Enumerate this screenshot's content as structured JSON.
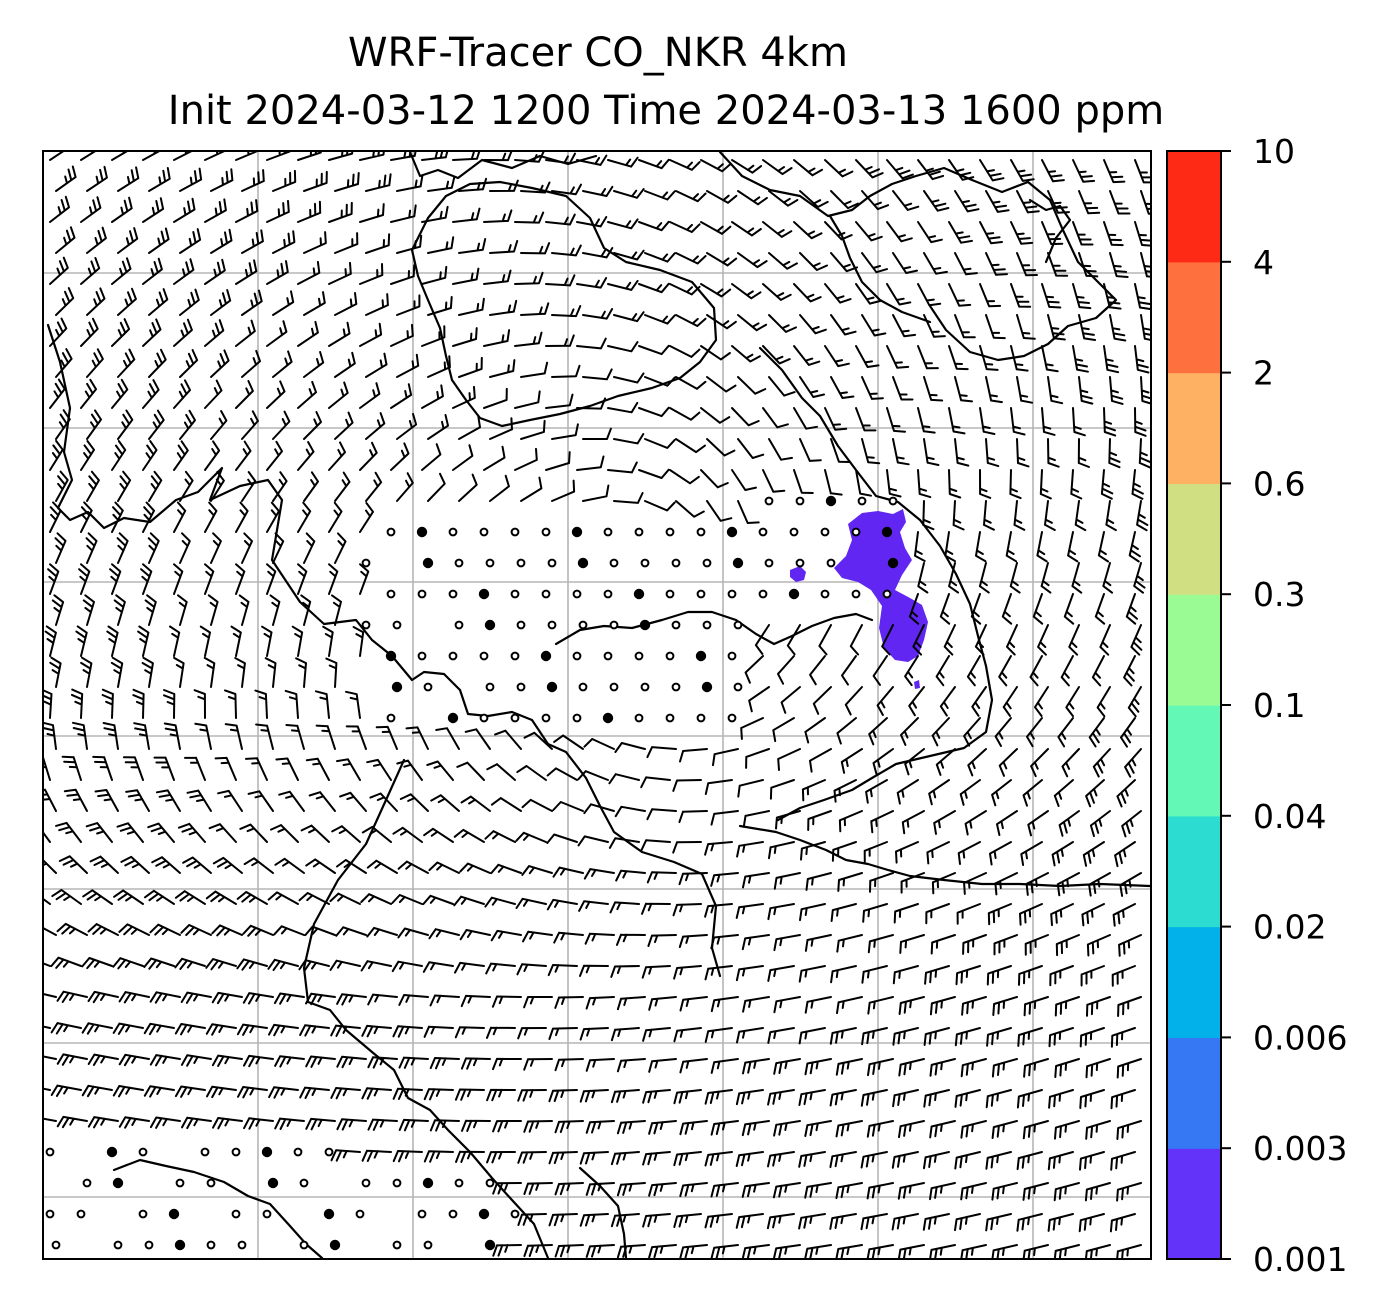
{
  "figure": {
    "title_line1": "WRF-Tracer CO_NKR 4km",
    "title_line2": "Init 2024-03-12 1200 Time 2024-03-13 1600 ppm"
  },
  "colorbar": {
    "tick_labels": [
      "0.001",
      "0.003",
      "0.006",
      "0.02",
      "0.04",
      "0.1",
      "0.3",
      "0.6",
      "2",
      "4",
      "10"
    ],
    "colors": [
      "#6433fa",
      "#3677f3",
      "#02b0ea",
      "#2cdcd0",
      "#63f8b5",
      "#9afb95",
      "#d0df82",
      "#ffb163",
      "#ff703f",
      "#ff2a16"
    ]
  },
  "map": {
    "plume_color": "#6126f2",
    "gridline_color": "#b5b5b5",
    "coastline_color": "#000000",
    "barb_color": "#000000"
  }
}
